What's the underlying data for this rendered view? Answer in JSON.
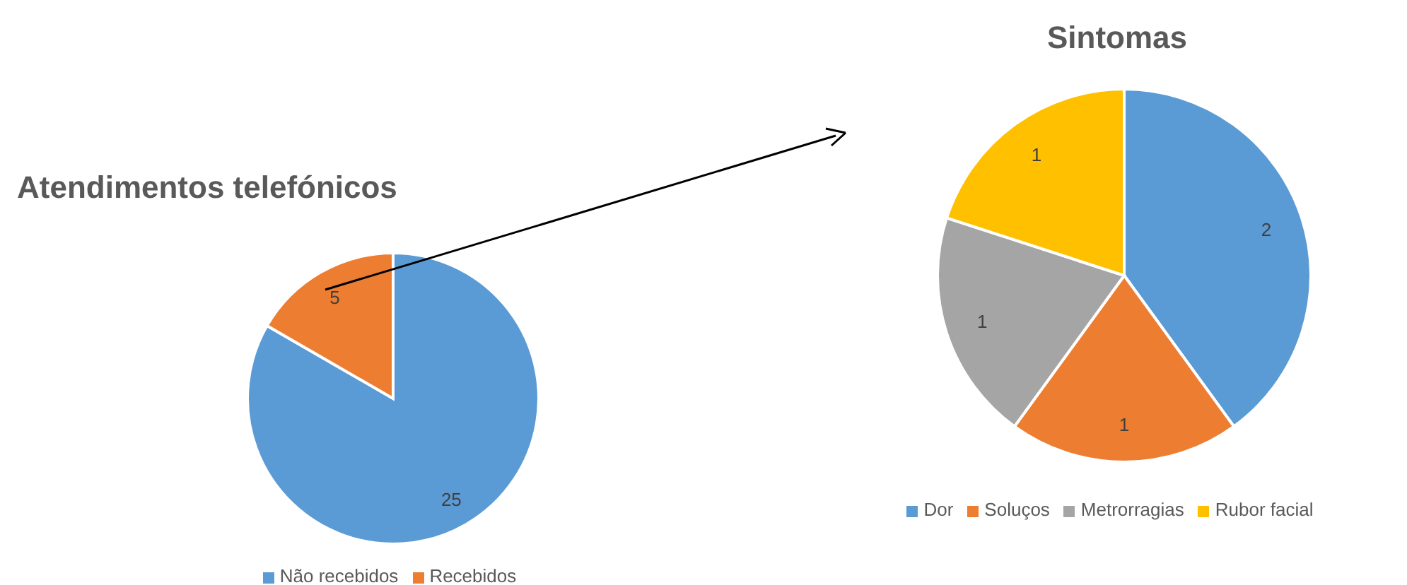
{
  "chart_data": [
    {
      "type": "pie",
      "title": "Atendimentos telefónicos",
      "categories": [
        "Não recebidos",
        "Recebidos"
      ],
      "values": [
        25,
        5
      ],
      "colors": [
        "#5b9bd5",
        "#ed7d31"
      ],
      "data_labels": true,
      "legend": "bottom"
    },
    {
      "type": "pie",
      "title": "Sintomas",
      "categories": [
        "Dor",
        "Soluços",
        "Metrorragias",
        "Rubor facial"
      ],
      "values": [
        2,
        1,
        1,
        1
      ],
      "colors": [
        "#5b9bd5",
        "#ed7d31",
        "#a5a5a5",
        "#ffc000"
      ],
      "data_labels": true,
      "legend": "bottom"
    }
  ]
}
